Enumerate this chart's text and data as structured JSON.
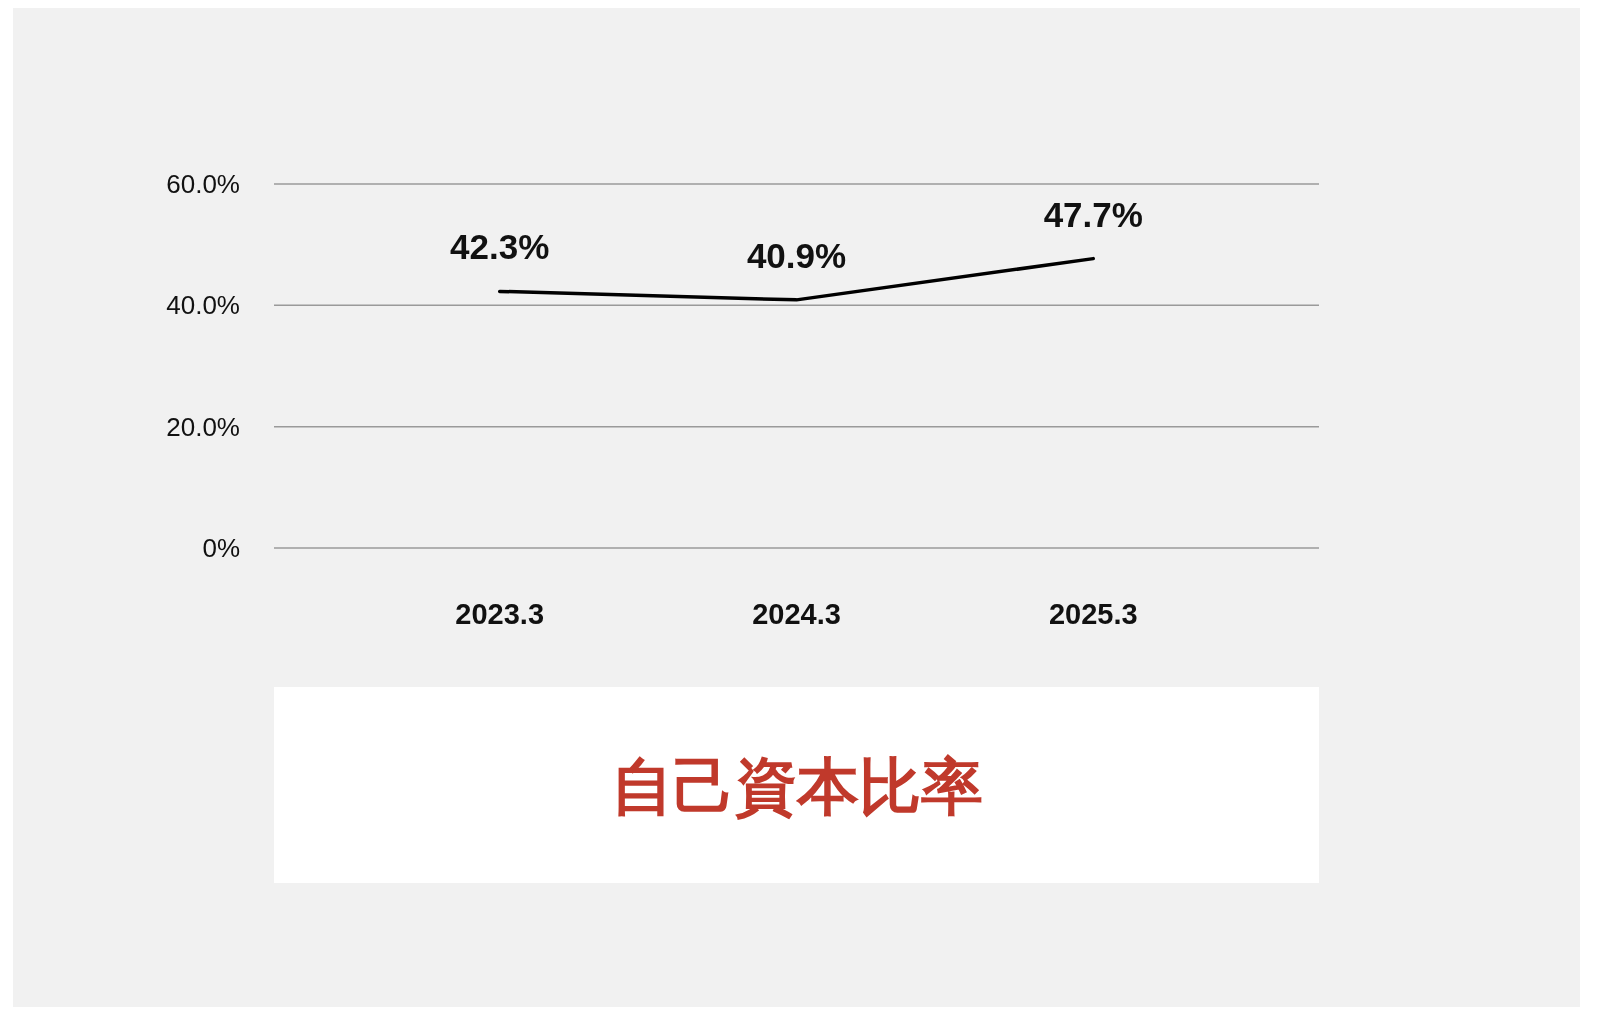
{
  "chart_data": {
    "type": "line",
    "title": "自己資本比率",
    "categories": [
      "2023.3",
      "2024.3",
      "2025.3"
    ],
    "series": [
      {
        "color": "#000000",
        "values": [
          42.3,
          40.9,
          47.7
        ]
      }
    ],
    "ylim": [
      0,
      60
    ],
    "yticks": [
      {
        "value": 0,
        "label": "0%"
      },
      {
        "value": 20,
        "label": "20.0%"
      },
      {
        "value": 40,
        "label": "40.0%"
      },
      {
        "value": 60,
        "label": "60.0%"
      }
    ],
    "value_labels": [
      "42.3%",
      "40.9%",
      "47.7%"
    ],
    "grid": "y",
    "marker": "none",
    "line_style": "solid"
  }
}
